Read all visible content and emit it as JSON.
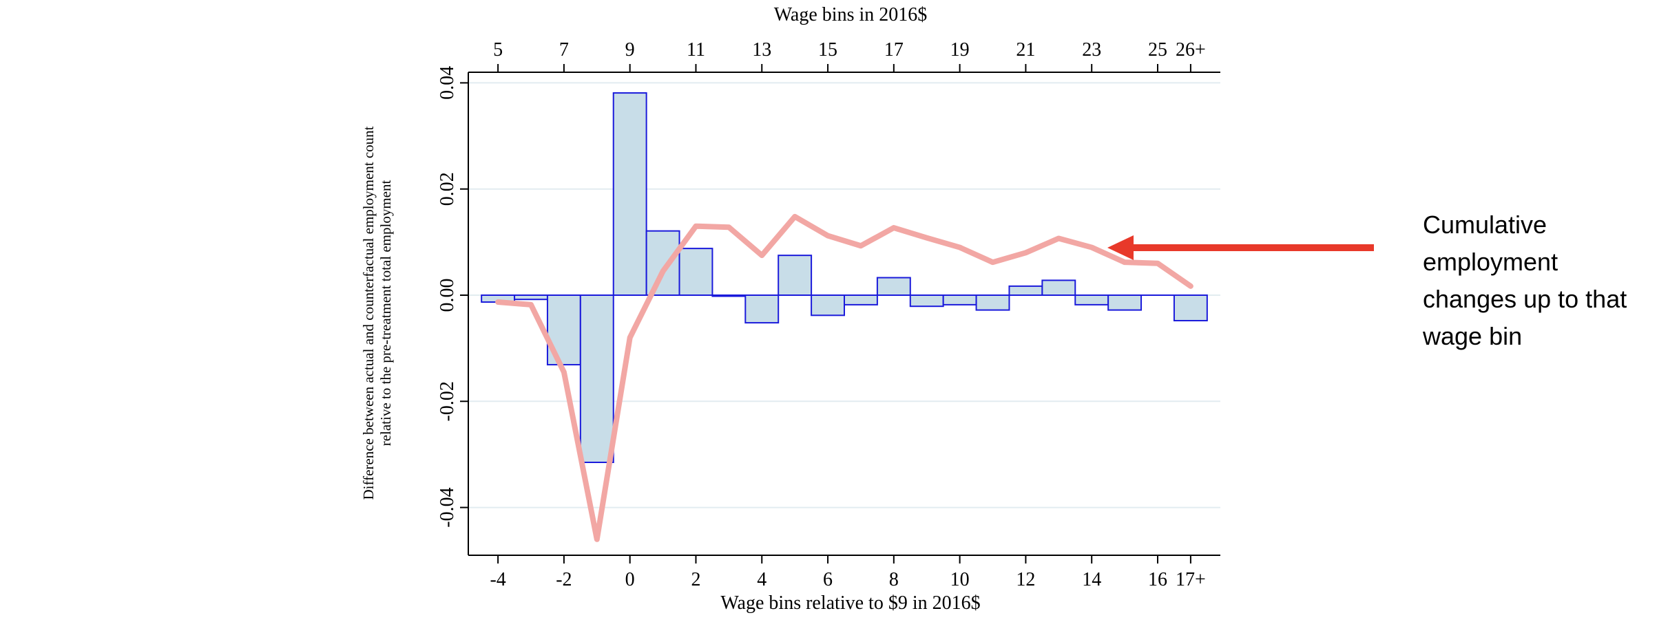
{
  "chart_data": {
    "type": "bar",
    "x_axis_bottom": {
      "label": "Wage bins relative to $9 in 2016$",
      "ticks": [
        "-4",
        "-2",
        "0",
        "2",
        "4",
        "6",
        "8",
        "10",
        "12",
        "14",
        "16",
        "17+"
      ],
      "range": [
        -4.9,
        17.9
      ]
    },
    "x_axis_top": {
      "label": "Wage bins in 2016$",
      "ticks": [
        "5",
        "7",
        "9",
        "11",
        "13",
        "15",
        "17",
        "19",
        "21",
        "23",
        "25",
        "26+"
      ]
    },
    "y_axis": {
      "label_line1": "Difference between actual and counterfactual employment count",
      "label_line2": "relative to the pre-treatment total employment",
      "ticks": [
        "-0.04",
        "-0.02",
        "0.00",
        "0.02",
        "0.04"
      ],
      "range": [
        -0.049,
        0.042
      ]
    },
    "grid": true,
    "series": [
      {
        "type": "bar",
        "color": "#c8dde8",
        "edge_color": "#1a1adb",
        "x": [
          -4,
          -3,
          -2,
          -1,
          0,
          1,
          2,
          3,
          4,
          5,
          6,
          7,
          8,
          9,
          10,
          11,
          12,
          13,
          14,
          15,
          17
        ],
        "values": [
          -0.0013,
          -0.0008,
          -0.0131,
          -0.0315,
          0.0381,
          0.0121,
          0.0088,
          -0.0002,
          -0.0052,
          0.0075,
          -0.0038,
          -0.0018,
          0.0033,
          -0.0021,
          -0.0018,
          -0.0028,
          0.0017,
          0.0028,
          -0.0018,
          -0.0028,
          -0.0048
        ]
      },
      {
        "type": "line",
        "color": "#f2a7a4",
        "x": [
          -4,
          -3,
          -2,
          -1,
          0,
          1,
          2,
          3,
          4,
          5,
          6,
          7,
          8,
          9,
          10,
          11,
          12,
          13,
          14,
          15,
          16,
          17
        ],
        "values": [
          -0.0013,
          -0.0018,
          -0.0145,
          -0.046,
          -0.008,
          0.0045,
          0.013,
          0.0128,
          0.0075,
          0.0148,
          0.0112,
          0.0093,
          0.0127,
          0.0108,
          0.009,
          0.0062,
          0.008,
          0.0107,
          0.009,
          0.0062,
          0.006,
          0.0017
        ]
      }
    ]
  },
  "annotation": {
    "lines": [
      "Cumulative",
      "employment",
      "changes up to that",
      "wage bin"
    ],
    "arrow_color": "#e8392a"
  }
}
